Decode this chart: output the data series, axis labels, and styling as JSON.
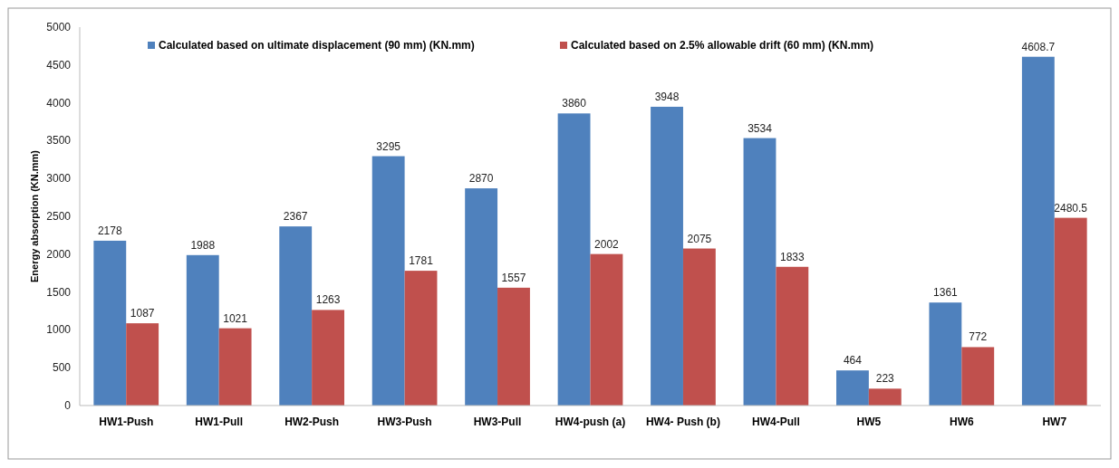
{
  "chart_data": {
    "type": "bar",
    "ylabel": "Energy absorption (KN.mm)",
    "categories": [
      "HW1-Push",
      "HW1-Pull",
      "HW2-Push",
      "HW3-Push",
      "HW3-Pull",
      "HW4-push (a)",
      "HW4- Push (b)",
      "HW4-Pull",
      "HW5",
      "HW6",
      "HW7"
    ],
    "series": [
      {
        "name": "Calculated based on ultimate displacement (90 mm) (KN.mm)",
        "color": "#4f81bd",
        "values": [
          2178,
          1988,
          2367,
          3295,
          2870,
          3860,
          3948,
          3534,
          464,
          1361,
          4608.7
        ]
      },
      {
        "name": "Calculated based on 2.5% allowable drift (60 mm) (KN.mm)",
        "color": "#c0504d",
        "values": [
          1087,
          1021,
          1263,
          1781,
          1557,
          2002,
          2075,
          1833,
          223,
          772,
          2480.5
        ]
      }
    ],
    "ylim": [
      0,
      5000
    ],
    "yticks": [
      0,
      500,
      1000,
      1500,
      2000,
      2500,
      3000,
      3500,
      4000,
      4500,
      5000
    ],
    "data_labels": true,
    "legend": "top",
    "grid": false
  }
}
